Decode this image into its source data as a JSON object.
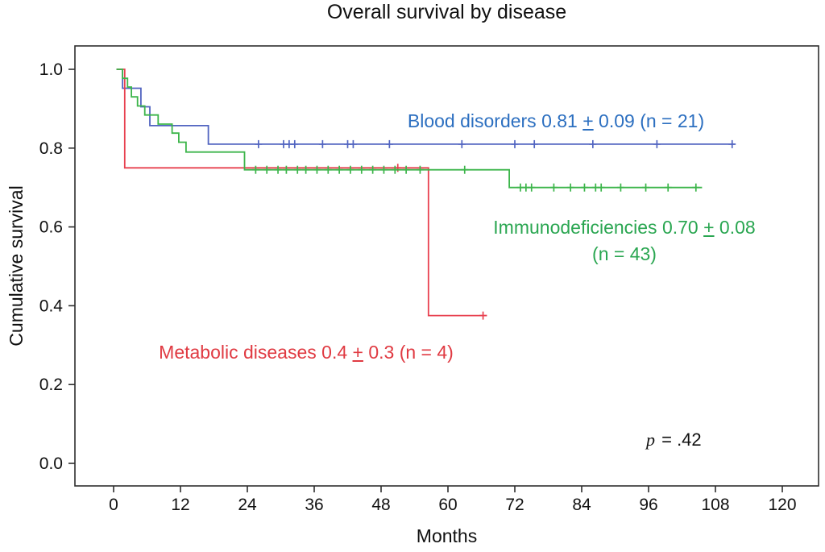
{
  "title": "Overall survival by disease",
  "axes": {
    "xlabel": "Months",
    "ylabel": "Cumulative survival"
  },
  "p_annotation": {
    "symbol": "p",
    "rest": " = .42"
  },
  "chart_data": {
    "type": "line",
    "subtype": "kaplan-meier-step",
    "title": "Overall survival by disease",
    "xlabel": "Months",
    "ylabel": "Cumulative survival",
    "xlim": [
      0,
      120
    ],
    "ylim": [
      0.0,
      1.0
    ],
    "xticks": [
      0,
      12,
      24,
      36,
      48,
      60,
      72,
      84,
      96,
      108,
      120
    ],
    "ytick_labels": [
      "0.0",
      "0.2",
      "0.4",
      "0.6",
      "0.8",
      "1.0"
    ],
    "grid": false,
    "frame_color": "#2e2e2e",
    "p_value": "p = .42",
    "series": [
      {
        "id": "blood-disorders",
        "name": "Blood disorders",
        "color": "#5164c0",
        "label_color": "#2c6fc0",
        "label": {
          "pre": "Blood disorders 0.81 ",
          "pm": "+",
          "post": " 0.09 (n = 21)"
        },
        "steps": [
          [
            0.5,
            1.0
          ],
          [
            1.6,
            0.952
          ],
          [
            4.9,
            0.905
          ],
          [
            6.5,
            0.857
          ],
          [
            17,
            0.81
          ]
        ],
        "end": 111.5,
        "censors": [
          [
            26,
            0.81
          ],
          [
            30.5,
            0.81
          ],
          [
            31.5,
            0.81
          ],
          [
            32.5,
            0.81
          ],
          [
            37.5,
            0.81
          ],
          [
            42,
            0.81
          ],
          [
            43,
            0.81
          ],
          [
            49.5,
            0.81
          ],
          [
            62.5,
            0.81
          ],
          [
            72,
            0.81
          ],
          [
            75.5,
            0.81
          ],
          [
            86,
            0.81
          ],
          [
            97.5,
            0.81
          ],
          [
            111,
            0.81
          ]
        ]
      },
      {
        "id": "immunodeficiencies",
        "name": "Immunodeficiencies",
        "color": "#3cb54a",
        "label_color": "#2aa651",
        "label": {
          "pre": "Immunodeficiencies 0.70 ",
          "pm": "+",
          "post": " 0.08",
          "line2": "(n = 43)"
        },
        "steps": [
          [
            0.5,
            1.0
          ],
          [
            1.6,
            0.977
          ],
          [
            2.5,
            0.955
          ],
          [
            3.2,
            0.93
          ],
          [
            4.3,
            0.907
          ],
          [
            5.6,
            0.884
          ],
          [
            8,
            0.861
          ],
          [
            10.5,
            0.838
          ],
          [
            11.7,
            0.815
          ],
          [
            13,
            0.79
          ],
          [
            23.5,
            0.745
          ],
          [
            71,
            0.7
          ]
        ],
        "end": 105.6,
        "censors": [
          [
            25.5,
            0.745
          ],
          [
            27.5,
            0.745
          ],
          [
            29.5,
            0.745
          ],
          [
            31,
            0.745
          ],
          [
            33,
            0.745
          ],
          [
            34.5,
            0.745
          ],
          [
            36.5,
            0.745
          ],
          [
            38.5,
            0.745
          ],
          [
            40.5,
            0.745
          ],
          [
            42.5,
            0.745
          ],
          [
            44.5,
            0.745
          ],
          [
            46.5,
            0.745
          ],
          [
            48.5,
            0.745
          ],
          [
            50.5,
            0.745
          ],
          [
            52.5,
            0.745
          ],
          [
            55,
            0.745
          ],
          [
            63,
            0.745
          ],
          [
            73,
            0.7
          ],
          [
            74,
            0.7
          ],
          [
            75,
            0.7
          ],
          [
            79,
            0.7
          ],
          [
            82,
            0.7
          ],
          [
            84.5,
            0.7
          ],
          [
            86.5,
            0.7
          ],
          [
            87.5,
            0.7
          ],
          [
            91,
            0.7
          ],
          [
            95.5,
            0.7
          ],
          [
            99.5,
            0.7
          ],
          [
            104.5,
            0.7
          ]
        ]
      },
      {
        "id": "metabolic-diseases",
        "name": "Metabolic diseases",
        "color": "#e8404f",
        "label_color": "#e03a42",
        "label": {
          "pre": "Metabolic diseases 0.4 ",
          "pm": "+",
          "post": " 0.3 (n = 4)"
        },
        "steps": [
          [
            0.5,
            1.0
          ],
          [
            2,
            0.75
          ],
          [
            56.5,
            0.375
          ]
        ],
        "end": 67,
        "censors": [
          [
            51,
            0.75
          ],
          [
            66.3,
            0.375
          ]
        ]
      }
    ]
  }
}
